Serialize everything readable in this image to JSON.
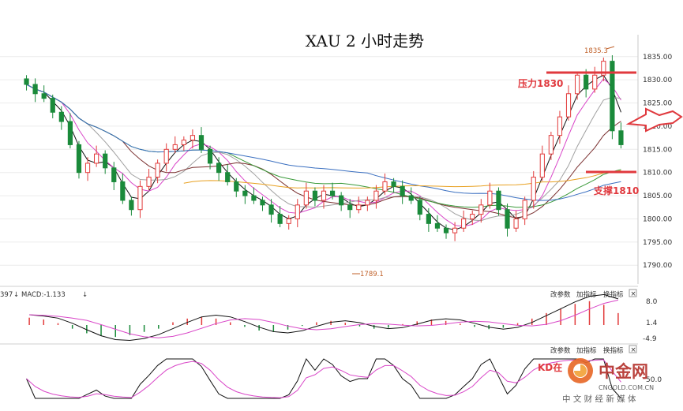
{
  "chart_data": [
    {
      "type": "candlestick",
      "title": "XAU 2 小时走势",
      "y_ticks": [
        1835,
        1830,
        1825,
        1820,
        1815,
        1810,
        1805,
        1800,
        1795,
        1790
      ],
      "ylim": [
        1788,
        1837
      ],
      "max_label": "1835.3",
      "min_label": "1789.1",
      "resistance": {
        "label": "压力1830",
        "value": 1830,
        "color": "#e0393e"
      },
      "support": {
        "label": "支撑1810",
        "value": 1810,
        "color": "#e0393e"
      },
      "candles_close": [
        1829,
        1827,
        1826,
        1823,
        1821,
        1816,
        1810,
        1812,
        1814,
        1811,
        1808,
        1804,
        1802,
        1807,
        1809,
        1812,
        1815,
        1816,
        1817,
        1818,
        1815,
        1812,
        1810,
        1808,
        1806,
        1805,
        1804,
        1803,
        1801,
        1799,
        1800,
        1803,
        1806,
        1804,
        1806,
        1805,
        1803,
        1802,
        1803,
        1804,
        1806,
        1808,
        1807,
        1805,
        1804,
        1801,
        1799,
        1798,
        1797,
        1798,
        1800,
        1801,
        1803,
        1806,
        1802,
        1798,
        1800,
        1804,
        1809,
        1814,
        1818,
        1822,
        1827,
        1831,
        1828,
        1831,
        1834,
        1819,
        1816
      ]
    },
    {
      "type": "line",
      "indicator": "MACD",
      "header": "MACD:-1.133",
      "header_prefix": "397",
      "y_ticks": [
        "8.0",
        "1.4",
        "-4.9"
      ],
      "hist": [
        1.6,
        1.2,
        0.4,
        -0.8,
        -1.8,
        -2.4,
        -2.6,
        -2.2,
        -1.5,
        -0.8,
        0.6,
        1.4,
        1.8,
        1.4,
        0.6,
        -0.4,
        -1.2,
        -1.5,
        -1.0,
        -0.2,
        0.6,
        0.9,
        0.5,
        -0.3,
        -0.8,
        -0.6,
        0.2,
        0.8,
        1.2,
        0.9,
        0.3,
        -0.4,
        -0.9,
        -0.6,
        0.4,
        1.4,
        2.6,
        3.6,
        4.6,
        5.2,
        4.4,
        2.6
      ]
    },
    {
      "type": "line",
      "indicator": "KD",
      "y_ticks": [
        "50.0"
      ],
      "note": "KD在"
    }
  ],
  "toolbar": {
    "change_params": "改参数",
    "add_indicator": "加指标",
    "switch_indicator": "换指标",
    "close": "×"
  },
  "watermark": {
    "logo_text": "中金网",
    "site": "CNGOLD.COM.CN",
    "tagline": "中 文 财 经 新 媒 体"
  },
  "colors": {
    "up": "#e23b3b",
    "down": "#1a8a3a",
    "ma_black": "#111111",
    "ma_magenta": "#d946c8",
    "ma_brown": "#7a2f2f",
    "ma_gray": "#a0a0a0",
    "ma_green": "#3a9a3a",
    "ma_blue": "#3a6fc0",
    "ma_orange": "#e8a020"
  }
}
